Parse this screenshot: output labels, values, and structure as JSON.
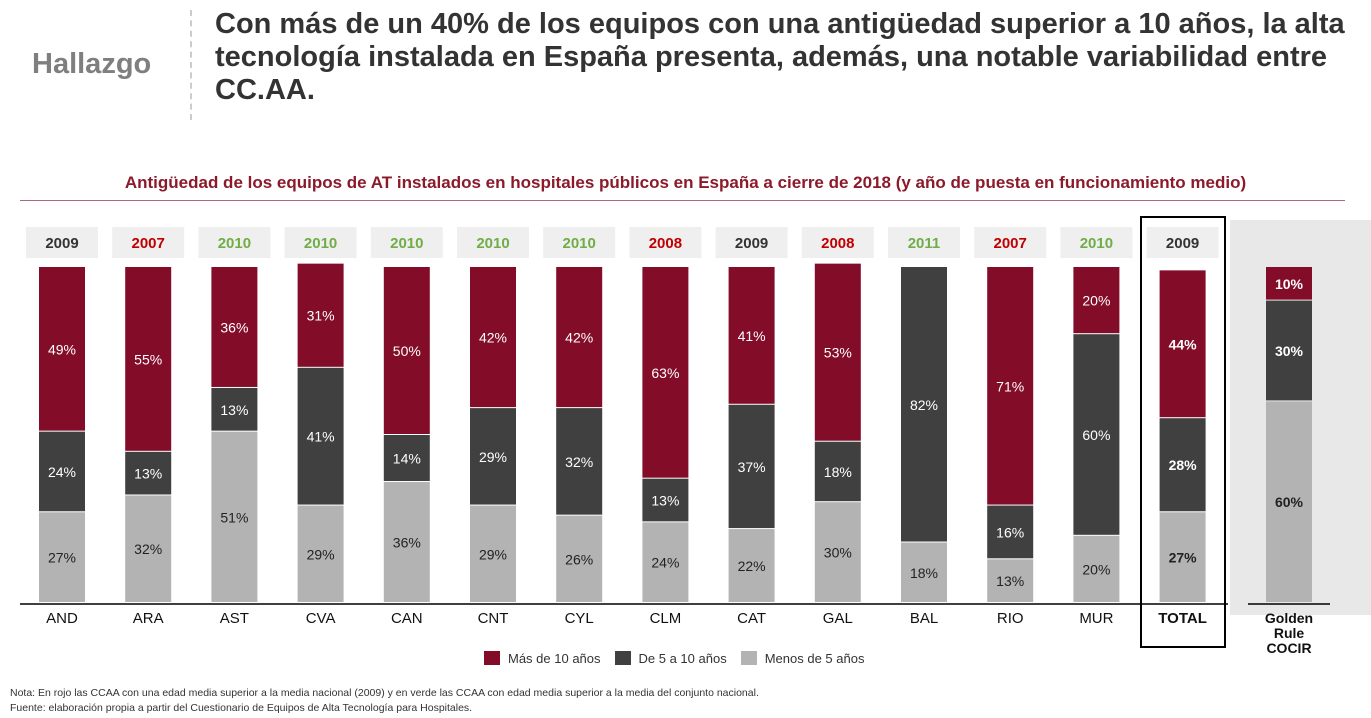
{
  "header": {
    "tag": "Hallazgo",
    "headline": "Con más de un 40% de los equipos con una antigüedad superior a 10 años, la alta tecnología instalada en España presenta, además, una notable variabilidad entre CC.AA."
  },
  "chart_data": {
    "type": "bar",
    "stacked": true,
    "title": "Antigüedad de los equipos de AT instalados en hospitales públicos en España a cierre de 2018 (y año de puesta en funcionamiento medio)",
    "categories": [
      "AND",
      "ARA",
      "AST",
      "CVA",
      "CAN",
      "CNT",
      "CYL",
      "CLM",
      "CAT",
      "GAL",
      "BAL",
      "RIO",
      "MUR",
      "TOTAL",
      "Golden Rule COCIR"
    ],
    "years": [
      "2009",
      "2007",
      "2010",
      "2010",
      "2010",
      "2010",
      "2010",
      "2008",
      "2009",
      "2008",
      "2011",
      "2007",
      "2010",
      "2009",
      ""
    ],
    "year_status": [
      "neutral",
      "above",
      "below",
      "below",
      "below",
      "below",
      "below",
      "above",
      "neutral",
      "above",
      "below",
      "above",
      "below",
      "neutral",
      ""
    ],
    "series": [
      {
        "name": "Más de 10 años",
        "color": "#830c28",
        "values": [
          49,
          55,
          36,
          31,
          50,
          42,
          42,
          63,
          41,
          53,
          0,
          71,
          20,
          44,
          10
        ]
      },
      {
        "name": "De 5 a 10 años",
        "color": "#404040",
        "values": [
          24,
          13,
          13,
          41,
          14,
          29,
          32,
          13,
          37,
          18,
          82,
          16,
          60,
          28,
          30
        ]
      },
      {
        "name": "Menos de 5 años",
        "color": "#b3b3b3",
        "values": [
          27,
          32,
          51,
          29,
          36,
          29,
          26,
          24,
          22,
          30,
          18,
          13,
          20,
          27,
          60
        ]
      }
    ],
    "ylim": [
      0,
      100
    ],
    "legend": "bottom",
    "grid": false,
    "year_colors": {
      "neutral": "#333333",
      "above": "#c00000",
      "below": "#70ad47"
    }
  },
  "notes": [
    "Nota: En rojo las CCAA con una edad media superior a la media nacional (2009) y en verde las CCAA con edad media superior a la media del conjunto nacional.",
    "Fuente: elaboración propia a partir del Cuestionario de Equipos de Alta Tecnología para Hospitales."
  ]
}
